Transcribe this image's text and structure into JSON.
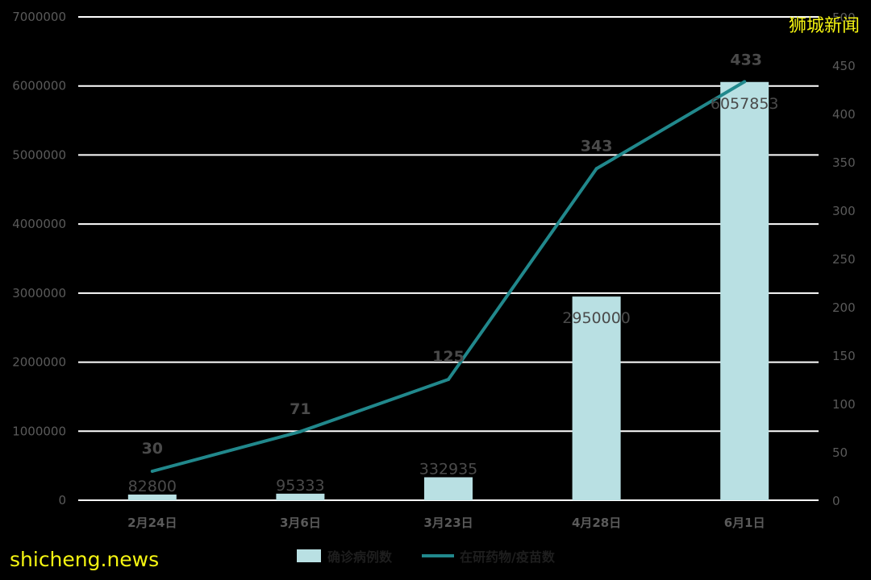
{
  "watermarks": {
    "top_right": "狮城新闻",
    "bottom_left": "shicheng.news"
  },
  "colors": {
    "background": "#000000",
    "bar": "#b9e0e3",
    "line": "#21888c",
    "grid": "#ffffff",
    "watermark": "#f5f511"
  },
  "chart_data": {
    "type": "bar",
    "categories": [
      "2月24日",
      "3月6日",
      "3月23日",
      "4月28日",
      "6月1日"
    ],
    "series": [
      {
        "name": "确诊病例数",
        "type": "bar",
        "axis": "left",
        "values": [
          82800,
          95333,
          332935,
          2950000,
          6057853
        ],
        "labels": [
          "82800",
          "95333",
          "332935",
          "2950000",
          "6057853"
        ]
      },
      {
        "name": "在研药物/疫苗数",
        "type": "line",
        "axis": "right",
        "values": [
          30,
          71,
          125,
          343,
          433
        ],
        "labels": [
          "30",
          "71",
          "125",
          "343",
          "433"
        ]
      }
    ],
    "y_left": {
      "min": 0,
      "max": 7000000,
      "ticks": [
        "0",
        "1000000",
        "2000000",
        "3000000",
        "4000000",
        "5000000",
        "6000000",
        "7000000"
      ]
    },
    "y_right": {
      "min": 0,
      "max": 500,
      "ticks": [
        "0",
        "50",
        "100",
        "150",
        "200",
        "250",
        "300",
        "350",
        "400",
        "450",
        "500"
      ]
    },
    "grid": true,
    "legend_position": "bottom"
  }
}
